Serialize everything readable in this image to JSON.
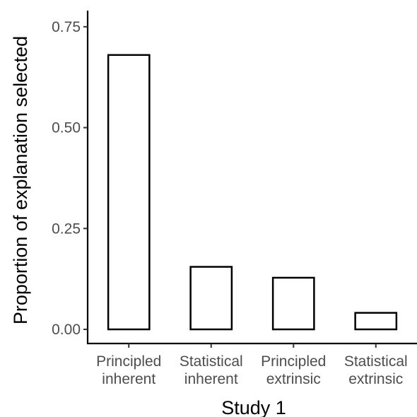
{
  "chart_data": {
    "type": "bar",
    "categories": [
      [
        "Principled",
        "inherent"
      ],
      [
        "Statistical",
        "inherent"
      ],
      [
        "Principled",
        "extrinsic"
      ],
      [
        "Statistical",
        "extrinsic"
      ]
    ],
    "values": [
      0.68,
      0.155,
      0.128,
      0.041
    ],
    "xlabel": "Study 1",
    "ylabel": "Proportion of explanation selected",
    "ylim": [
      -0.035,
      0.79
    ],
    "yticks": [
      0,
      0.25,
      0.5,
      0.75
    ],
    "ytick_labels": [
      "0.00",
      "0.25",
      "0.50",
      "0.75"
    ],
    "grid": false,
    "legend": "none",
    "colors": {
      "bar_fill": "#ffffff",
      "bar_stroke": "#000000",
      "axis": "#000000",
      "tick_label": "#4d4d4d"
    }
  }
}
